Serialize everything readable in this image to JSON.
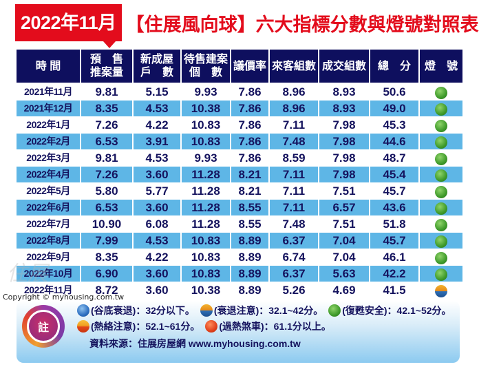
{
  "title": {
    "date": "2022年11月",
    "main": "【住展風向球】六大指標分數與燈號對照表"
  },
  "table": {
    "headers": [
      "時 間",
      "預 售\n推案量",
      "新成屋\n戶 數",
      "待售建案\n個 數",
      "議價率",
      "來客組數",
      "成交組數",
      "總 分",
      "燈 號"
    ],
    "header_lines": [
      [
        "時 間"
      ],
      [
        "預　售",
        "推案量"
      ],
      [
        "新成屋",
        "戶　數"
      ],
      [
        "待售建案",
        "個　數"
      ],
      [
        "議價率"
      ],
      [
        "來客組數"
      ],
      [
        "成交組數"
      ],
      [
        "總　分"
      ],
      [
        "燈　號"
      ]
    ],
    "rows": [
      {
        "date": "2021年11月",
        "presale": "9.81",
        "new_units": "5.15",
        "unsold_projects": "9.93",
        "bargain_rate": "7.86",
        "visitors": "8.96",
        "deals": "8.93",
        "total": "50.6",
        "light": "green"
      },
      {
        "date": "2021年12月",
        "presale": "8.35",
        "new_units": "4.53",
        "unsold_projects": "10.38",
        "bargain_rate": "7.86",
        "visitors": "8.96",
        "deals": "8.93",
        "total": "49.0",
        "light": "green"
      },
      {
        "date": "2022年1月",
        "presale": "7.26",
        "new_units": "4.22",
        "unsold_projects": "10.83",
        "bargain_rate": "7.86",
        "visitors": "7.11",
        "deals": "7.98",
        "total": "45.3",
        "light": "green"
      },
      {
        "date": "2022年2月",
        "presale": "6.53",
        "new_units": "3.91",
        "unsold_projects": "10.83",
        "bargain_rate": "7.86",
        "visitors": "7.48",
        "deals": "7.98",
        "total": "44.6",
        "light": "green"
      },
      {
        "date": "2022年3月",
        "presale": "9.81",
        "new_units": "4.53",
        "unsold_projects": "9.93",
        "bargain_rate": "7.86",
        "visitors": "8.59",
        "deals": "7.98",
        "total": "48.7",
        "light": "green"
      },
      {
        "date": "2022年4月",
        "presale": "7.26",
        "new_units": "3.60",
        "unsold_projects": "11.28",
        "bargain_rate": "8.21",
        "visitors": "7.11",
        "deals": "7.98",
        "total": "45.4",
        "light": "green"
      },
      {
        "date": "2022年5月",
        "presale": "5.80",
        "new_units": "5.77",
        "unsold_projects": "11.28",
        "bargain_rate": "8.21",
        "visitors": "7.11",
        "deals": "7.51",
        "total": "45.7",
        "light": "green"
      },
      {
        "date": "2022年6月",
        "presale": "6.53",
        "new_units": "3.60",
        "unsold_projects": "11.28",
        "bargain_rate": "8.55",
        "visitors": "7.11",
        "deals": "6.57",
        "total": "43.6",
        "light": "green"
      },
      {
        "date": "2022年7月",
        "presale": "10.90",
        "new_units": "6.08",
        "unsold_projects": "11.28",
        "bargain_rate": "8.55",
        "visitors": "7.48",
        "deals": "7.51",
        "total": "51.8",
        "light": "green"
      },
      {
        "date": "2022年8月",
        "presale": "7.99",
        "new_units": "4.53",
        "unsold_projects": "10.83",
        "bargain_rate": "8.89",
        "visitors": "6.37",
        "deals": "7.04",
        "total": "45.7",
        "light": "green"
      },
      {
        "date": "2022年9月",
        "presale": "8.35",
        "new_units": "4.22",
        "unsold_projects": "10.83",
        "bargain_rate": "8.89",
        "visitors": "6.74",
        "deals": "7.04",
        "total": "46.1",
        "light": "green"
      },
      {
        "date": "2022年10月",
        "presale": "6.90",
        "new_units": "3.60",
        "unsold_projects": "10.83",
        "bargain_rate": "8.89",
        "visitors": "6.37",
        "deals": "5.63",
        "total": "42.2",
        "light": "green"
      },
      {
        "date": "2022年11月",
        "presale": "8.72",
        "new_units": "3.60",
        "unsold_projects": "10.38",
        "bargain_rate": "8.89",
        "visitors": "5.26",
        "deals": "4.69",
        "total": "41.5",
        "light": "yellow-blue"
      }
    ]
  },
  "copyright": "Copyright © myhousing.com.tw",
  "notes": {
    "badge": "註",
    "legend": [
      {
        "icon": "blue",
        "label": "(谷底衰退)：32分以下。"
      },
      {
        "icon": "yellow-blue",
        "label": "(衰退注意)：32.1~42分。"
      },
      {
        "icon": "green",
        "label": "(復甦安全)：42.1~52分。"
      },
      {
        "icon": "orange",
        "label": "(熱絡注意)：52.1~61分。"
      },
      {
        "icon": "red",
        "label": "(過熱煞車)：61.1分以上。"
      }
    ],
    "source": "資料來源：住展房屋網 www.myhousing.com.tw"
  },
  "watermark": "住展",
  "colors": {
    "title_red": "#e30c1c",
    "header_navy": "#0e0f5e",
    "row_alt_blue": "#5eb6e6",
    "text_navy": "#15135e"
  }
}
